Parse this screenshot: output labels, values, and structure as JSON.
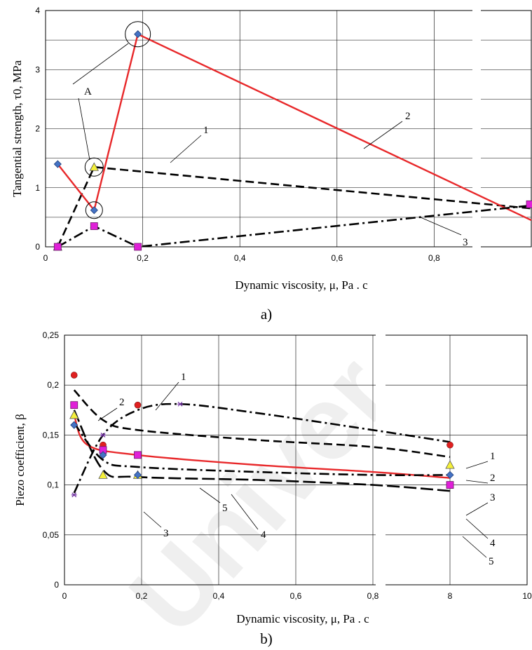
{
  "colors": {
    "red": "#e8282a",
    "black": "#000000",
    "blue_marker": "#4472c4",
    "magenta_marker": "#e020d8",
    "yellow_marker": "#f5f03a",
    "red_marker": "#e02020",
    "grid": "#000000"
  },
  "chart_data": [
    {
      "panel": "a)",
      "type": "line",
      "ylabel": "Tangential strength, τ0, MPa",
      "xlabel": "Dynamic viscosity, μ, Pa . c",
      "x_ticks": [
        "0",
        "0,2",
        "0,4",
        "0,6",
        "0,8"
      ],
      "y_ticks": [
        "0",
        "1",
        "2",
        "3",
        "4"
      ],
      "ylim": [
        0,
        4
      ],
      "x_axis_break": "between 0,8 and 10 (broken axis)",
      "grid": true,
      "annotations": [
        "A",
        "1",
        "2",
        "3"
      ],
      "series": [
        {
          "label": "1",
          "style": "black dashed",
          "marker": "yellow triangle",
          "x": [
            0.025,
            0.1,
            8.0
          ],
          "y": [
            0.0,
            1.35,
            0.65
          ]
        },
        {
          "label": "2",
          "style": "red solid",
          "marker": "blue diamond",
          "x": [
            0.025,
            0.1,
            0.19,
            8.0
          ],
          "y": [
            1.4,
            0.62,
            3.6,
            0.45
          ]
        },
        {
          "label": "3",
          "style": "black dash-dot",
          "marker": "magenta square",
          "x": [
            0.025,
            0.1,
            0.19,
            8.0
          ],
          "y": [
            0.0,
            0.35,
            0.0,
            0.7
          ]
        }
      ]
    },
    {
      "panel": "b)",
      "type": "line",
      "ylabel": "Piezo coefficient, β",
      "xlabel": "Dynamic viscosity, μ, Pa . c",
      "x_ticks": [
        "0",
        "0,2",
        "0,4",
        "0,6",
        "0,8",
        "8",
        "10"
      ],
      "y_ticks": [
        "0",
        "0,05",
        "0,1",
        "0,15",
        "0,2",
        "0,25"
      ],
      "ylim": [
        0,
        0.25
      ],
      "x_axis_break": "between 0,8 and 8 (broken axis)",
      "grid": true,
      "annotations": [
        "1",
        "2",
        "3",
        "4",
        "5",
        "1",
        "2",
        "3",
        "4",
        "5"
      ],
      "series": [
        {
          "label": "1",
          "style": "black dash-dot",
          "marker": "purple star",
          "x": [
            0.025,
            0.1,
            0.19,
            0.3,
            8.0
          ],
          "y": [
            0.09,
            0.15,
            0.18,
            0.181,
            0.14
          ]
        },
        {
          "label": "2",
          "style": "black dashed",
          "marker": "red circle",
          "x": [
            0.025,
            0.1,
            0.19,
            8.0
          ],
          "y": [
            0.21,
            0.14,
            0.18,
            0.14
          ]
        },
        {
          "label": "3",
          "style": "black long-dash",
          "marker": "yellow triangle",
          "x": [
            0.025,
            0.1,
            0.19,
            8.0
          ],
          "y": [
            0.17,
            0.11,
            0.11,
            0.12
          ]
        },
        {
          "label": "4",
          "style": "red solid",
          "marker": "magenta square",
          "x": [
            0.025,
            0.1,
            0.19,
            8.0
          ],
          "y": [
            0.18,
            0.135,
            0.13,
            0.1
          ]
        },
        {
          "label": "5",
          "style": "black dash-dot",
          "marker": "blue diamond",
          "x": [
            0.025,
            0.1,
            0.19,
            8.0
          ],
          "y": [
            0.16,
            0.13,
            0.11,
            0.11
          ]
        }
      ]
    }
  ],
  "watermark_text": "Univer"
}
